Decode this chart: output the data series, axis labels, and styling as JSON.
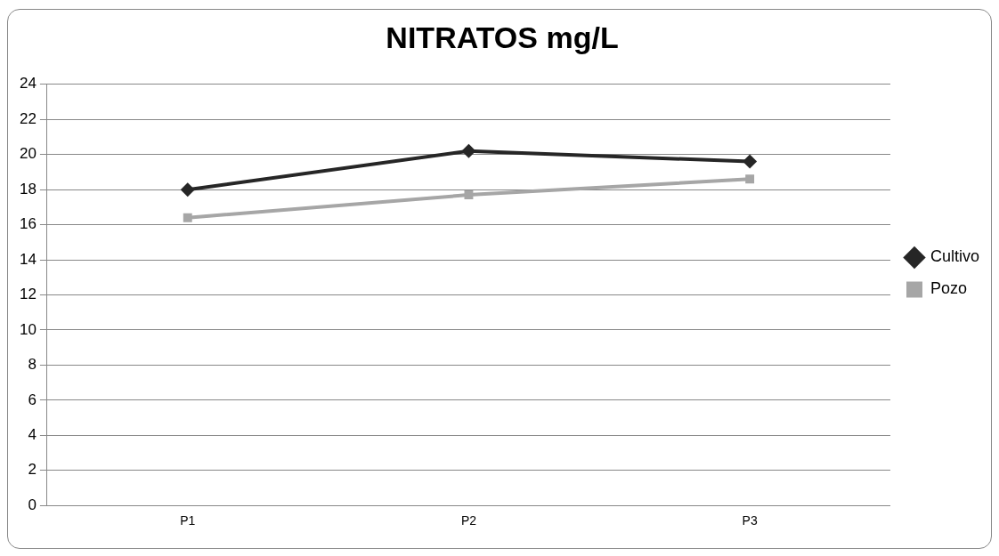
{
  "chart_data": {
    "type": "line",
    "title": "NITRATOS mg/L",
    "categories": [
      "P1",
      "P2",
      "P3"
    ],
    "series": [
      {
        "name": "Cultivo",
        "color": "#262626",
        "values": [
          18.0,
          20.2,
          19.6
        ],
        "marker": "diamond"
      },
      {
        "name": "Pozo",
        "color": "#a6a6a6",
        "values": [
          16.4,
          17.7,
          18.6
        ],
        "marker": "square"
      }
    ],
    "ylim": [
      0,
      24
    ],
    "yticks": [
      0,
      2,
      4,
      6,
      8,
      10,
      12,
      14,
      16,
      18,
      20,
      22,
      24
    ],
    "grid": "y",
    "legend": "right",
    "line_style": "solid"
  }
}
